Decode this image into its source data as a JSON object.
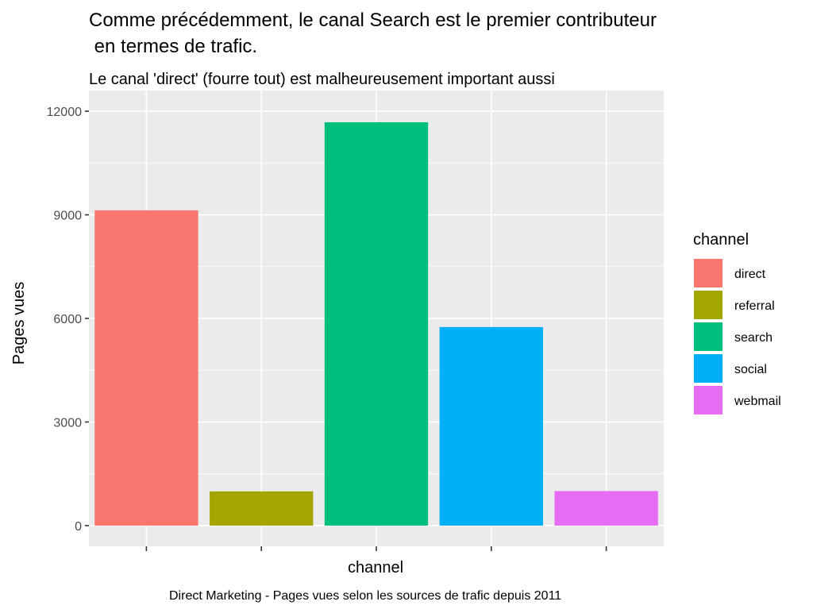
{
  "chart_data": {
    "type": "bar",
    "title_line1": "Comme précédemment, le canal Search est le premier contributeur",
    "title_line2": " en termes de trafic.",
    "subtitle": "Le canal 'direct' (fourre tout) est malheureusement important aussi",
    "xlabel": "channel",
    "ylabel": "Pages vues",
    "caption": "Direct Marketing - Pages vues selon les sources de trafic depuis 2011",
    "categories": [
      "direct",
      "referral",
      "search",
      "social",
      "webmail"
    ],
    "values": [
      9130,
      990,
      11680,
      5750,
      1000
    ],
    "colors": [
      "#F8766D",
      "#A3A500",
      "#00BF7D",
      "#00B0F6",
      "#E76BF3"
    ],
    "ylim": [
      -600,
      12600
    ],
    "yticks": [
      0,
      3000,
      6000,
      9000,
      12000
    ],
    "ytick_labels": [
      "0",
      "3000",
      "6000",
      "9000",
      "12000"
    ],
    "x_tick_labels_visible": false,
    "grid": true,
    "panel_background": "#EBEBEB",
    "legend": {
      "title": "channel",
      "position": "right",
      "entries": [
        "direct",
        "referral",
        "search",
        "social",
        "webmail"
      ]
    }
  }
}
